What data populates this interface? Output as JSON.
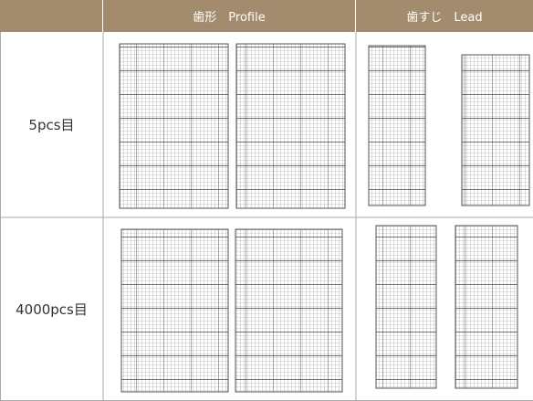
{
  "table": {
    "columns": [
      "歯形　Profile",
      "歯すじ　Lead"
    ],
    "rows": [
      "5pcs目",
      "4000pcs目"
    ]
  }
}
